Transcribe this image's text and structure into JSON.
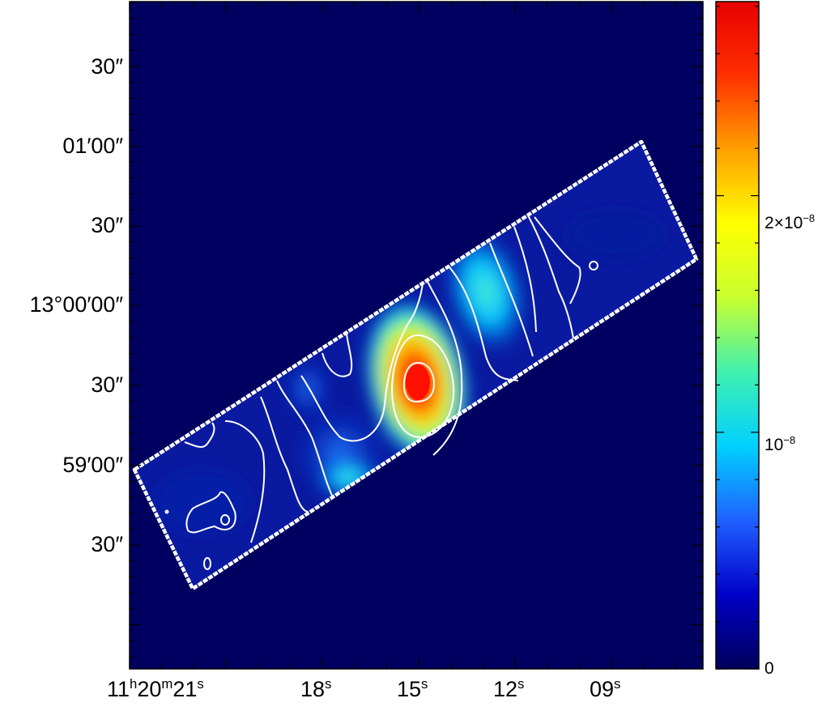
{
  "map": {
    "dec_tick_labels": [
      "30″",
      "01′00″",
      "30″",
      "13°00′00″",
      "30″",
      "59′00″",
      "30″"
    ],
    "ra_tick_labels": [
      {
        "h": "11",
        "h_unit": "h",
        "m": "20",
        "m_unit": "m",
        "s": "21",
        "s_unit": "s"
      },
      {
        "s": "18",
        "s_unit": "s"
      },
      {
        "s": "15",
        "s_unit": "s"
      },
      {
        "s": "12",
        "s_unit": "s"
      },
      {
        "s": "09",
        "s_unit": "s"
      }
    ],
    "colors": {
      "background": "#000060",
      "contour": "#ffffff",
      "footprint": "#ffffff"
    }
  },
  "colorbar": {
    "ticks": [
      {
        "label": "0",
        "value": 0
      },
      {
        "mantissa": "",
        "base": "10",
        "exponent": "−8",
        "value": 1e-08
      },
      {
        "mantissa": "2×",
        "base": "10",
        "exponent": "−8",
        "value": 2e-08
      }
    ],
    "min": 0,
    "max": 2.82e-08,
    "colormap": [
      "#00005a",
      "#0000c8",
      "#2060ff",
      "#00d0ff",
      "#40f0b0",
      "#c8ff30",
      "#ffff00",
      "#ffa000",
      "#ff3000",
      "#e80000"
    ]
  }
}
